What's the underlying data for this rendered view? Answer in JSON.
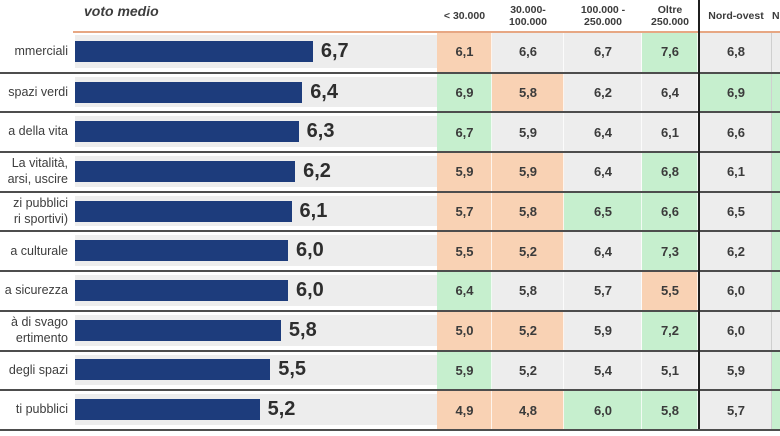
{
  "header": {
    "chart_title": "voto medio",
    "size_cols": [
      {
        "lines": [
          "< 30.000"
        ]
      },
      {
        "lines": [
          "30.000-",
          "100.000"
        ]
      },
      {
        "lines": [
          "100.000 -",
          "250.000"
        ]
      },
      {
        "lines": [
          "Oltre",
          "250.000"
        ]
      }
    ],
    "region_col": "Nord-ovest",
    "next_col_partial": "N"
  },
  "colors": {
    "bar": "#1D3C7C",
    "positive_green": "#C6EFCE",
    "negative_orange": "#F9D2B4",
    "neutral_gray": "#EDEDED",
    "accent_line": "#E7A783",
    "separator": "#4D4D4D",
    "divider_black": "#1F1F1F"
  },
  "rows": [
    {
      "label_lines": [
        "mmerciali"
      ],
      "voto_medio": "6,7",
      "cells": [
        {
          "v": "6,1",
          "bg": "orange"
        },
        {
          "v": "6,6",
          "bg": "neutral"
        },
        {
          "v": "6,7",
          "bg": "neutral"
        },
        {
          "v": "7,6",
          "bg": "green"
        },
        {
          "v": "6,8",
          "bg": "neutral"
        }
      ],
      "next_partial_bg": "neutral"
    },
    {
      "label_lines": [
        "spazi verdi"
      ],
      "voto_medio": "6,4",
      "cells": [
        {
          "v": "6,9",
          "bg": "green"
        },
        {
          "v": "5,8",
          "bg": "orange"
        },
        {
          "v": "6,2",
          "bg": "neutral"
        },
        {
          "v": "6,4",
          "bg": "neutral"
        },
        {
          "v": "6,9",
          "bg": "green"
        }
      ],
      "next_partial_bg": "green"
    },
    {
      "label_lines": [
        "a della vita"
      ],
      "voto_medio": "6,3",
      "cells": [
        {
          "v": "6,7",
          "bg": "green"
        },
        {
          "v": "5,9",
          "bg": "neutral"
        },
        {
          "v": "6,4",
          "bg": "neutral"
        },
        {
          "v": "6,1",
          "bg": "neutral"
        },
        {
          "v": "6,6",
          "bg": "neutral"
        }
      ],
      "next_partial_bg": "green"
    },
    {
      "label_lines": [
        "La vitalità,",
        "arsi, uscire"
      ],
      "voto_medio": "6,2",
      "cells": [
        {
          "v": "5,9",
          "bg": "orange"
        },
        {
          "v": "5,9",
          "bg": "orange"
        },
        {
          "v": "6,4",
          "bg": "neutral"
        },
        {
          "v": "6,8",
          "bg": "green"
        },
        {
          "v": "6,1",
          "bg": "neutral"
        }
      ],
      "next_partial_bg": "green"
    },
    {
      "label_lines": [
        "zi pubblici",
        "ri sportivi)"
      ],
      "voto_medio": "6,1",
      "cells": [
        {
          "v": "5,7",
          "bg": "orange"
        },
        {
          "v": "5,8",
          "bg": "orange"
        },
        {
          "v": "6,5",
          "bg": "green"
        },
        {
          "v": "6,6",
          "bg": "green"
        },
        {
          "v": "6,5",
          "bg": "neutral"
        }
      ],
      "next_partial_bg": "green"
    },
    {
      "label_lines": [
        "a culturale"
      ],
      "voto_medio": "6,0",
      "cells": [
        {
          "v": "5,5",
          "bg": "orange"
        },
        {
          "v": "5,2",
          "bg": "orange"
        },
        {
          "v": "6,4",
          "bg": "neutral"
        },
        {
          "v": "7,3",
          "bg": "green"
        },
        {
          "v": "6,2",
          "bg": "neutral"
        }
      ],
      "next_partial_bg": "green"
    },
    {
      "label_lines": [
        "a sicurezza"
      ],
      "voto_medio": "6,0",
      "cells": [
        {
          "v": "6,4",
          "bg": "green"
        },
        {
          "v": "5,8",
          "bg": "neutral"
        },
        {
          "v": "5,7",
          "bg": "neutral"
        },
        {
          "v": "5,5",
          "bg": "orange"
        },
        {
          "v": "6,0",
          "bg": "neutral"
        }
      ],
      "next_partial_bg": "green"
    },
    {
      "label_lines": [
        "à di svago",
        "ertimento"
      ],
      "voto_medio": "5,8",
      "cells": [
        {
          "v": "5,0",
          "bg": "orange"
        },
        {
          "v": "5,2",
          "bg": "orange"
        },
        {
          "v": "5,9",
          "bg": "neutral"
        },
        {
          "v": "7,2",
          "bg": "green"
        },
        {
          "v": "6,0",
          "bg": "neutral"
        }
      ],
      "next_partial_bg": "neutral"
    },
    {
      "label_lines": [
        "degli spazi"
      ],
      "voto_medio": "5,5",
      "cells": [
        {
          "v": "5,9",
          "bg": "green"
        },
        {
          "v": "5,2",
          "bg": "neutral"
        },
        {
          "v": "5,4",
          "bg": "neutral"
        },
        {
          "v": "5,1",
          "bg": "neutral"
        },
        {
          "v": "5,9",
          "bg": "neutral"
        }
      ],
      "next_partial_bg": "green"
    },
    {
      "label_lines": [
        "ti pubblici"
      ],
      "voto_medio": "5,2",
      "cells": [
        {
          "v": "4,9",
          "bg": "orange"
        },
        {
          "v": "4,8",
          "bg": "orange"
        },
        {
          "v": "6,0",
          "bg": "green"
        },
        {
          "v": "5,8",
          "bg": "green"
        },
        {
          "v": "5,7",
          "bg": "neutral"
        }
      ],
      "next_partial_bg": "green"
    }
  ],
  "chart_data": {
    "type": "bar",
    "orientation": "horizontal",
    "title": "voto medio",
    "categories": [
      "mmerciali",
      "spazi verdi",
      "a della vita",
      "La vitalità, arsi, uscire",
      "zi pubblici ri sportivi)",
      "a culturale",
      "a sicurezza",
      "à di svago ertimento",
      "degli spazi",
      "ti pubblici"
    ],
    "values": [
      6.7,
      6.4,
      6.3,
      6.2,
      6.1,
      6.0,
      6.0,
      5.8,
      5.5,
      5.2
    ],
    "xlim": [
      0,
      10
    ],
    "grid": false,
    "legend": false,
    "series": [
      {
        "name": "voto medio",
        "values": [
          6.7,
          6.4,
          6.3,
          6.2,
          6.1,
          6.0,
          6.0,
          5.8,
          5.5,
          5.2
        ]
      },
      {
        "name": "< 30.000",
        "values": [
          6.1,
          6.9,
          6.7,
          5.9,
          5.7,
          5.5,
          6.4,
          5.0,
          5.9,
          4.9
        ]
      },
      {
        "name": "30.000-100.000",
        "values": [
          6.6,
          5.8,
          5.9,
          5.9,
          5.8,
          5.2,
          5.8,
          5.2,
          5.2,
          4.8
        ]
      },
      {
        "name": "100.000 - 250.000",
        "values": [
          6.7,
          6.2,
          6.4,
          6.4,
          6.5,
          6.4,
          5.7,
          5.9,
          5.4,
          6.0
        ]
      },
      {
        "name": "Oltre 250.000",
        "values": [
          7.6,
          6.4,
          6.1,
          6.8,
          6.6,
          7.3,
          5.5,
          7.2,
          5.1,
          5.8
        ]
      },
      {
        "name": "Nord-ovest",
        "values": [
          6.8,
          6.9,
          6.6,
          6.1,
          6.5,
          6.2,
          6.0,
          6.0,
          5.9,
          5.7
        ]
      }
    ]
  }
}
